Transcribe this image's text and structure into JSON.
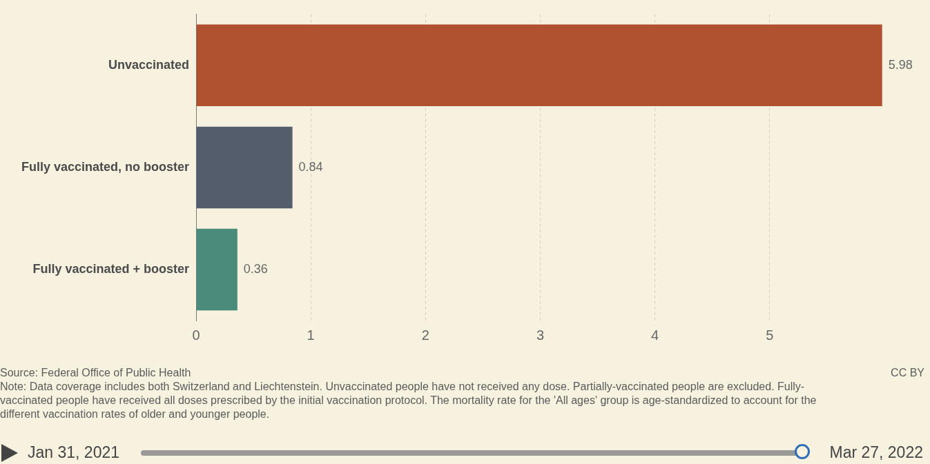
{
  "chart_data": {
    "type": "bar",
    "orientation": "horizontal",
    "categories": [
      "Unvaccinated",
      "Fully vaccinated, no booster",
      "Fully vaccinated + booster"
    ],
    "values": [
      5.98,
      0.84,
      0.36
    ],
    "colors": [
      "#b0522f",
      "#545d6b",
      "#4b8b7b"
    ],
    "xlim": [
      0,
      6
    ],
    "xticks": [
      0,
      1,
      2,
      3,
      4,
      5
    ],
    "grid": "x",
    "legend": false,
    "data_labels": true,
    "annotations": [
      "Source: Federal Office of Public Health",
      "CC BY",
      "Note: Data coverage includes both Switzerland and Liechtenstein. Unvaccinated people have not received any dose. Partially-vaccinated people are excluded. Fully-vaccinated people have received all doses prescribed by the initial vaccination protocol. The mortality rate for the 'All ages' group is age-standardized to account for the different vaccination rates of older and younger people.",
      "Jan 31, 2021",
      "Mar 27, 2022"
    ]
  }
}
